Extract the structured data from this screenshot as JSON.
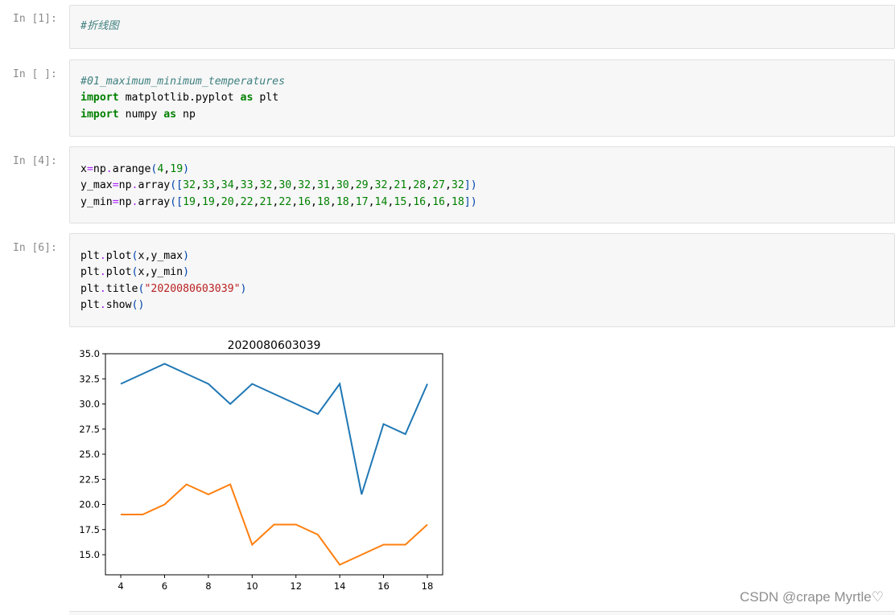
{
  "cells": [
    {
      "prompt": "In [1]:",
      "lines": [
        [
          {
            "t": "#折线图",
            "c": "cm"
          }
        ]
      ]
    },
    {
      "prompt": "In [ ]:",
      "lines": [
        [
          {
            "t": "#01_maximum_minimum_temperatures",
            "c": "cm"
          }
        ],
        [
          {
            "t": "import",
            "c": "kw"
          },
          {
            "t": " matplotlib.pyplot ",
            "c": ""
          },
          {
            "t": "as",
            "c": "kw"
          },
          {
            "t": " plt",
            "c": ""
          }
        ],
        [
          {
            "t": "import",
            "c": "kw"
          },
          {
            "t": " numpy ",
            "c": ""
          },
          {
            "t": "as",
            "c": "kw"
          },
          {
            "t": " np",
            "c": ""
          }
        ]
      ]
    },
    {
      "prompt": "In [4]:",
      "lines": [
        [
          {
            "t": "x",
            "c": ""
          },
          {
            "t": "=",
            "c": "op"
          },
          {
            "t": "np",
            "c": ""
          },
          {
            "t": ".",
            "c": "op"
          },
          {
            "t": "arange",
            "c": ""
          },
          {
            "t": "(",
            "c": "par"
          },
          {
            "t": "4",
            "c": "num"
          },
          {
            "t": ",",
            "c": ""
          },
          {
            "t": "19",
            "c": "num"
          },
          {
            "t": ")",
            "c": "par"
          }
        ],
        [
          {
            "t": "y_max",
            "c": ""
          },
          {
            "t": "=",
            "c": "op"
          },
          {
            "t": "np",
            "c": ""
          },
          {
            "t": ".",
            "c": "op"
          },
          {
            "t": "array",
            "c": ""
          },
          {
            "t": "([",
            "c": "par"
          },
          {
            "t": "32",
            "c": "num"
          },
          {
            "t": ",",
            "c": ""
          },
          {
            "t": "33",
            "c": "num"
          },
          {
            "t": ",",
            "c": ""
          },
          {
            "t": "34",
            "c": "num"
          },
          {
            "t": ",",
            "c": ""
          },
          {
            "t": "33",
            "c": "num"
          },
          {
            "t": ",",
            "c": ""
          },
          {
            "t": "32",
            "c": "num"
          },
          {
            "t": ",",
            "c": ""
          },
          {
            "t": "30",
            "c": "num"
          },
          {
            "t": ",",
            "c": ""
          },
          {
            "t": "32",
            "c": "num"
          },
          {
            "t": ",",
            "c": ""
          },
          {
            "t": "31",
            "c": "num"
          },
          {
            "t": ",",
            "c": ""
          },
          {
            "t": "30",
            "c": "num"
          },
          {
            "t": ",",
            "c": ""
          },
          {
            "t": "29",
            "c": "num"
          },
          {
            "t": ",",
            "c": ""
          },
          {
            "t": "32",
            "c": "num"
          },
          {
            "t": ",",
            "c": ""
          },
          {
            "t": "21",
            "c": "num"
          },
          {
            "t": ",",
            "c": ""
          },
          {
            "t": "28",
            "c": "num"
          },
          {
            "t": ",",
            "c": ""
          },
          {
            "t": "27",
            "c": "num"
          },
          {
            "t": ",",
            "c": ""
          },
          {
            "t": "32",
            "c": "num"
          },
          {
            "t": "])",
            "c": "par"
          }
        ],
        [
          {
            "t": "y_min",
            "c": ""
          },
          {
            "t": "=",
            "c": "op"
          },
          {
            "t": "np",
            "c": ""
          },
          {
            "t": ".",
            "c": "op"
          },
          {
            "t": "array",
            "c": ""
          },
          {
            "t": "([",
            "c": "par"
          },
          {
            "t": "19",
            "c": "num"
          },
          {
            "t": ",",
            "c": ""
          },
          {
            "t": "19",
            "c": "num"
          },
          {
            "t": ",",
            "c": ""
          },
          {
            "t": "20",
            "c": "num"
          },
          {
            "t": ",",
            "c": ""
          },
          {
            "t": "22",
            "c": "num"
          },
          {
            "t": ",",
            "c": ""
          },
          {
            "t": "21",
            "c": "num"
          },
          {
            "t": ",",
            "c": ""
          },
          {
            "t": "22",
            "c": "num"
          },
          {
            "t": ",",
            "c": ""
          },
          {
            "t": "16",
            "c": "num"
          },
          {
            "t": ",",
            "c": ""
          },
          {
            "t": "18",
            "c": "num"
          },
          {
            "t": ",",
            "c": ""
          },
          {
            "t": "18",
            "c": "num"
          },
          {
            "t": ",",
            "c": ""
          },
          {
            "t": "17",
            "c": "num"
          },
          {
            "t": ",",
            "c": ""
          },
          {
            "t": "14",
            "c": "num"
          },
          {
            "t": ",",
            "c": ""
          },
          {
            "t": "15",
            "c": "num"
          },
          {
            "t": ",",
            "c": ""
          },
          {
            "t": "16",
            "c": "num"
          },
          {
            "t": ",",
            "c": ""
          },
          {
            "t": "16",
            "c": "num"
          },
          {
            "t": ",",
            "c": ""
          },
          {
            "t": "18",
            "c": "num"
          },
          {
            "t": "])",
            "c": "par"
          }
        ]
      ]
    },
    {
      "prompt": "In [6]:",
      "lines": [
        [
          {
            "t": "plt",
            "c": ""
          },
          {
            "t": ".",
            "c": "op"
          },
          {
            "t": "plot",
            "c": ""
          },
          {
            "t": "(",
            "c": "par"
          },
          {
            "t": "x,y_max",
            "c": ""
          },
          {
            "t": ")",
            "c": "par"
          }
        ],
        [
          {
            "t": "plt",
            "c": ""
          },
          {
            "t": ".",
            "c": "op"
          },
          {
            "t": "plot",
            "c": ""
          },
          {
            "t": "(",
            "c": "par"
          },
          {
            "t": "x,y_min",
            "c": ""
          },
          {
            "t": ")",
            "c": "par"
          }
        ],
        [
          {
            "t": "plt",
            "c": ""
          },
          {
            "t": ".",
            "c": "op"
          },
          {
            "t": "title",
            "c": ""
          },
          {
            "t": "(",
            "c": "par"
          },
          {
            "t": "\"2020080603039\"",
            "c": "str"
          },
          {
            "t": ")",
            "c": "par"
          }
        ],
        [
          {
            "t": "plt",
            "c": ""
          },
          {
            "t": ".",
            "c": "op"
          },
          {
            "t": "show",
            "c": ""
          },
          {
            "t": "()",
            "c": "par"
          }
        ]
      ]
    }
  ],
  "watermark": "CSDN @crape Myrtle♡",
  "colors": {
    "series1": "#1f77b4",
    "series2": "#ff7f0e"
  },
  "chart_data": {
    "type": "line",
    "title": "2020080603039",
    "x": [
      4,
      5,
      6,
      7,
      8,
      9,
      10,
      11,
      12,
      13,
      14,
      15,
      16,
      17,
      18
    ],
    "series": [
      {
        "values": [
          32,
          33,
          34,
          33,
          32,
          30,
          32,
          31,
          30,
          29,
          32,
          21,
          28,
          27,
          32
        ]
      },
      {
        "values": [
          19,
          19,
          20,
          22,
          21,
          22,
          16,
          18,
          18,
          17,
          14,
          15,
          16,
          16,
          18
        ]
      }
    ],
    "xticks": [
      4,
      6,
      8,
      10,
      12,
      14,
      16,
      18
    ],
    "xtick_labels": [
      "4",
      "6",
      "8",
      "10",
      "12",
      "14",
      "16",
      "18"
    ],
    "yticks": [
      15,
      17.5,
      20,
      22.5,
      25,
      27.5,
      30,
      32.5,
      35
    ],
    "ytick_labels": [
      "15.0",
      "17.5",
      "20.0",
      "22.5",
      "25.0",
      "27.5",
      "30.0",
      "32.5",
      "35.0"
    ],
    "xlim": [
      3.3,
      18.7
    ],
    "ylim": [
      13,
      35
    ],
    "grid": false
  }
}
